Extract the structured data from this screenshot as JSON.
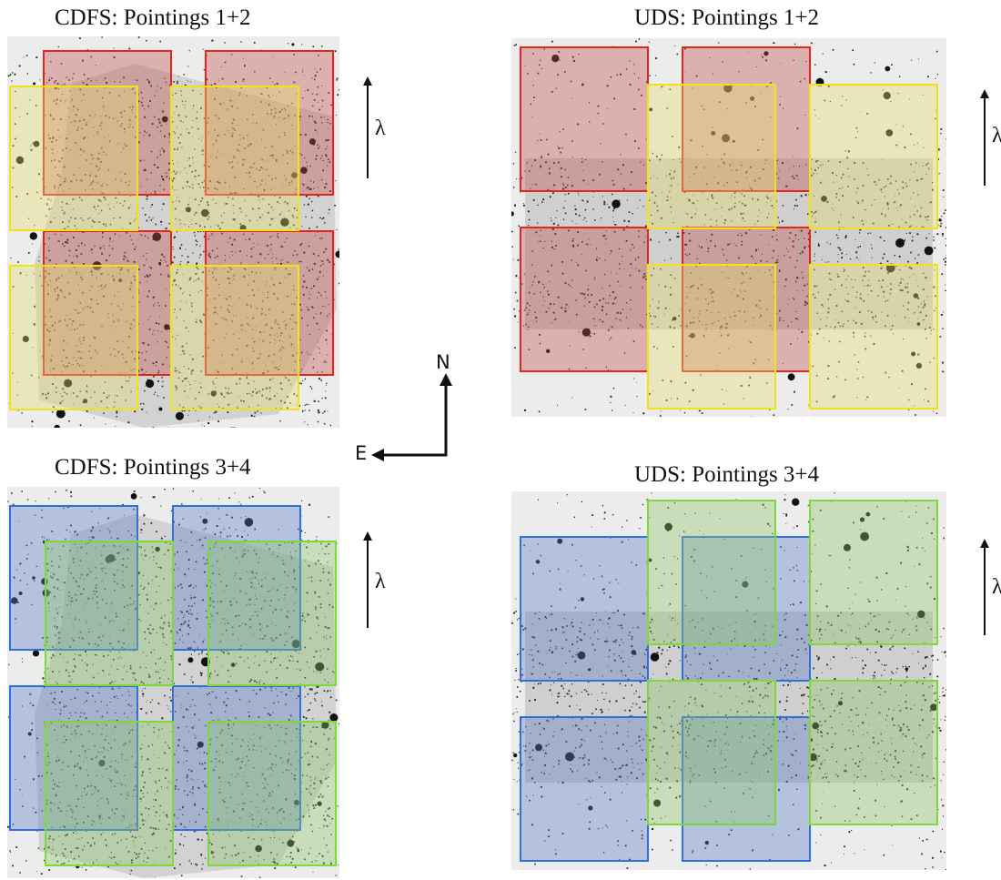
{
  "panels": [
    {
      "id": "cdfs-12",
      "title": "CDFS: Pointings 1+2",
      "field": "CDFS",
      "colors": [
        "red",
        "yellow"
      ]
    },
    {
      "id": "uds-12",
      "title": "UDS: Pointings 1+2",
      "field": "UDS",
      "colors": [
        "red",
        "yellow"
      ]
    },
    {
      "id": "cdfs-34",
      "title": "CDFS: Pointings 3+4",
      "field": "CDFS",
      "colors": [
        "blue",
        "green"
      ]
    },
    {
      "id": "uds-34",
      "title": "UDS: Pointings 3+4",
      "field": "UDS",
      "colors": [
        "blue",
        "green"
      ]
    }
  ],
  "dispersion_label": "λ",
  "compass": {
    "north": "N",
    "east": "E"
  },
  "pointing_colors": {
    "red": {
      "stroke": "#e8231c",
      "fill": "#c0504d"
    },
    "yellow": {
      "stroke": "#f2e21a",
      "fill": "#e6dc6e"
    },
    "blue": {
      "stroke": "#2f6fe0",
      "fill": "#5a7dc8"
    },
    "green": {
      "stroke": "#7ed83a",
      "fill": "#8fc86a"
    }
  }
}
